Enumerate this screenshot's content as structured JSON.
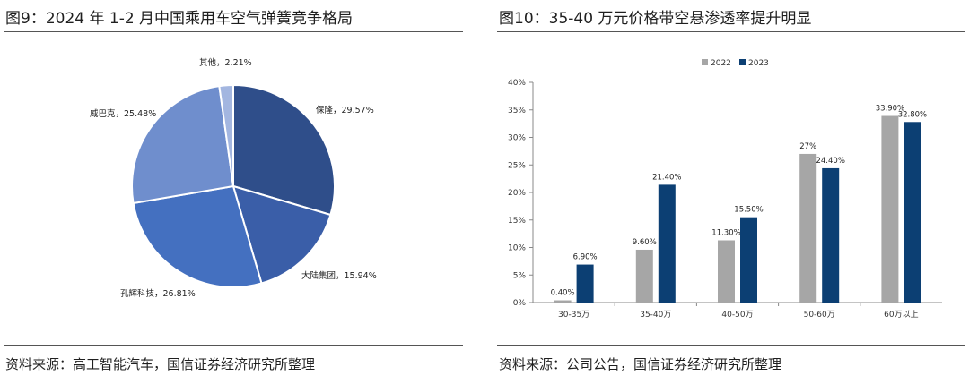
{
  "left": {
    "title": "图9：2024 年 1-2 月中国乘用车空气弹簧竞争格局",
    "source": "资料来源：高工智能汽车，国信证券经济研究所整理"
  },
  "right": {
    "title": "图10：35-40 万元价格带空悬渗透率提升明显",
    "source": "资料来源：公司公告，国信证券经济研究所整理"
  },
  "chart_data": [
    {
      "type": "pie",
      "slices": [
        {
          "label": "保隆",
          "value": 29.57,
          "display": "保隆，29.57%",
          "color": "#2f4e8a"
        },
        {
          "label": "大陆集团",
          "value": 15.94,
          "display": "大陆集团，15.94%",
          "color": "#3a5ea8"
        },
        {
          "label": "孔辉科技",
          "value": 26.81,
          "display": "孔辉科技，26.81%",
          "color": "#4470c0"
        },
        {
          "label": "威巴克",
          "value": 25.48,
          "display": "威巴克，25.48%",
          "color": "#6f8ecd"
        },
        {
          "label": "其他",
          "value": 2.21,
          "display": "其他，2.21%",
          "color": "#a3b6e0"
        }
      ]
    },
    {
      "type": "bar",
      "categories": [
        "30-35万",
        "35-40万",
        "40-50万",
        "50-60万",
        "60万以上"
      ],
      "series": [
        {
          "name": "2022",
          "values": [
            0.4,
            9.6,
            11.3,
            27,
            33.9
          ],
          "labels": [
            "0.40%",
            "9.60%",
            "11.30%",
            "27%",
            "33.90%"
          ],
          "color": "#a6a6a6"
        },
        {
          "name": "2023",
          "values": [
            6.9,
            21.4,
            15.5,
            24.4,
            32.8
          ],
          "labels": [
            "6.90%",
            "21.40%",
            "15.50%",
            "24.40%",
            "32.80%"
          ],
          "color": "#0c3f73"
        }
      ],
      "ylim": [
        0,
        40
      ],
      "yticks": [
        "0%",
        "5%",
        "10%",
        "15%",
        "20%",
        "25%",
        "30%",
        "35%",
        "40%"
      ],
      "legend_position": "top-center",
      "grid": false
    }
  ]
}
